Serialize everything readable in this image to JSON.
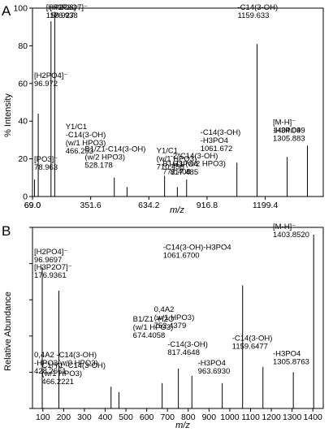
{
  "chart_data": [
    {
      "type": "bar",
      "panel_label": "A",
      "xlabel": "m/z",
      "ylabel": "% Intensity",
      "xlim": [
        69.0,
        1481.0
      ],
      "ylim": [
        0,
        100
      ],
      "xticks": [
        "69.0",
        "351.6",
        "634.2",
        "916.8",
        "1199.4"
      ],
      "yticks": [
        "0",
        "20",
        "40",
        "60",
        "80",
        "100"
      ],
      "peaks": [
        {
          "x": 78.963,
          "y": 9
        },
        {
          "x": 96.972,
          "y": 44
        },
        {
          "x": 158.927,
          "y": 93
        },
        {
          "x": 176.938,
          "y": 98
        },
        {
          "x": 466.253,
          "y": 10
        },
        {
          "x": 528.178,
          "y": 5
        },
        {
          "x": 710.458,
          "y": 11
        },
        {
          "x": 772.408,
          "y": 5
        },
        {
          "x": 817.485,
          "y": 9
        },
        {
          "x": 1061.672,
          "y": 18
        },
        {
          "x": 1159.633,
          "y": 81
        },
        {
          "x": 1305.883,
          "y": 21
        },
        {
          "x": 1404.099,
          "y": 27
        }
      ],
      "annotations": [
        {
          "lines": [
            "[H3P2O7]⁻",
            "176.938"
          ],
          "x": 176.938
        },
        {
          "lines": [
            "[HP2O6]⁻",
            "158.927"
          ],
          "x": 158.927
        },
        {
          "lines": [
            "[H2PO4]⁻",
            "96.972"
          ],
          "x": 96.972
        },
        {
          "lines": [
            "[PO3]⁻",
            "78.963"
          ],
          "x": 78.963
        },
        {
          "lines": [
            "Y1/C1",
            "-C14(3-OH)",
            "(w/1 HPO3)",
            "466.253"
          ],
          "x": 466.253
        },
        {
          "lines": [
            "B1/Z1-C14(3-OH)",
            "(w/2 HPO3)",
            "528.178"
          ],
          "x": 528.178
        },
        {
          "lines": [
            "Y1/C1",
            "(w/1 HPO3)",
            "710.458"
          ],
          "x": 710.458
        },
        {
          "lines": [
            "B1/Z1 (w/2 HPO3)",
            "772.408"
          ],
          "x": 772.408
        },
        {
          "lines": [
            "-2*C14(3-OH)",
            "-H3PO4",
            "817.485"
          ],
          "x": 817.485
        },
        {
          "lines": [
            "-C14(3-OH)",
            "-H3PO4",
            "1061.672"
          ],
          "x": 1061.672
        },
        {
          "lines": [
            "-C14(3-OH)",
            "1159.633"
          ],
          "x": 1159.633
        },
        {
          "lines": [
            "-H3PO4",
            "1305.883"
          ],
          "x": 1305.883
        },
        {
          "lines": [
            "[M-H]⁻",
            "1404.099"
          ],
          "x": 1404.099
        }
      ]
    },
    {
      "type": "bar",
      "panel_label": "B",
      "xlabel": "m/z",
      "ylabel": "Relative Abundance",
      "xlim": [
        50,
        1450
      ],
      "ylim": [
        0,
        100
      ],
      "xticks": [
        "100",
        "200",
        "300",
        "400",
        "500",
        "600",
        "700",
        "800",
        "900",
        "1000",
        "1100",
        "1200",
        "1300",
        "1400"
      ],
      "yticks": [],
      "peaks": [
        {
          "x": 96.9697,
          "y": 78
        },
        {
          "x": 176.9361,
          "y": 65
        },
        {
          "x": 428.2661,
          "y": 12
        },
        {
          "x": 466.2221,
          "y": 9
        },
        {
          "x": 674.4058,
          "y": 14
        },
        {
          "x": 752.4379,
          "y": 22
        },
        {
          "x": 817.4648,
          "y": 18
        },
        {
          "x": 963.693,
          "y": 14
        },
        {
          "x": 1061.67,
          "y": 68
        },
        {
          "x": 1159.6477,
          "y": 23
        },
        {
          "x": 1305.8763,
          "y": 20
        },
        {
          "x": 1403.852,
          "y": 96
        }
      ],
      "annotations": [
        {
          "lines": [
            "[M-H]⁻",
            "1403.8520"
          ],
          "x": 1403.852
        },
        {
          "lines": [
            "[H2PO4]⁻",
            "96.9697"
          ],
          "x": 96.9697
        },
        {
          "lines": [
            "[H3P2O7]⁻",
            "176.9361"
          ],
          "x": 176.9361
        },
        {
          "lines": [
            "-C14(3-OH)-H3PO4",
            "1061.6700"
          ],
          "x": 1061.67
        },
        {
          "lines": [
            "B1/Z1 -H2O",
            "(w/1 HPO3)",
            "674.4058"
          ],
          "x": 674.4058
        },
        {
          "lines": [
            "0,4A2",
            "(w/1 HPO3)",
            "752.4379"
          ],
          "x": 752.4379
        },
        {
          "lines": [
            "0,4A2 -C14(3-OH)",
            "-HPO3(w/0 HPO3)",
            "428.2661"
          ],
          "x": 428.2661
        },
        {
          "lines": [
            "C1/Y1 -C14(3-OH)",
            "(w/1 HPO3)",
            "466.2221"
          ],
          "x": 466.2221
        },
        {
          "lines": [
            "-C14(3-OH)",
            "817.4648"
          ],
          "x": 817.4648
        },
        {
          "lines": [
            "-C14(3-OH)",
            "1159.6477"
          ],
          "x": 1159.6477
        },
        {
          "lines": [
            "-H3PO4",
            "963.6930"
          ],
          "x": 963.693
        },
        {
          "lines": [
            "-H3PO4",
            "1305.8763"
          ],
          "x": 1305.8763
        }
      ]
    }
  ]
}
